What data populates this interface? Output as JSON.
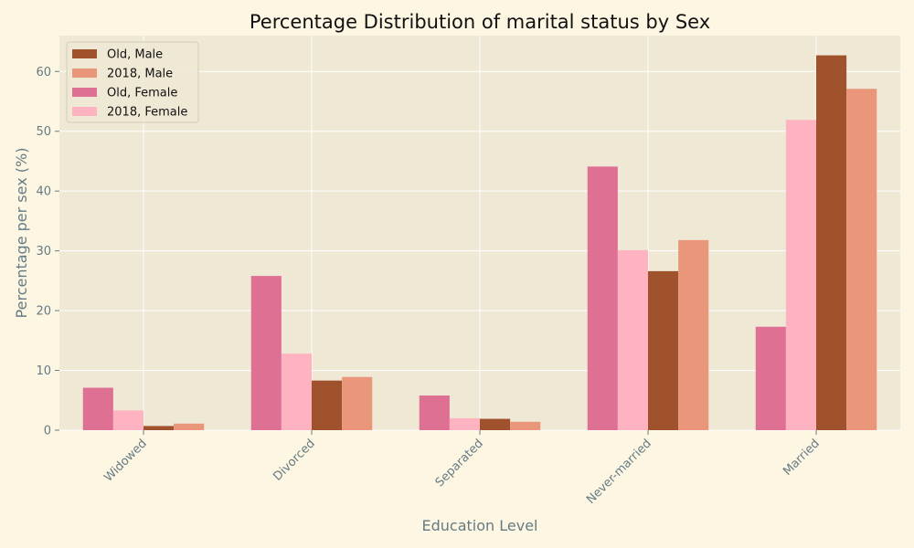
{
  "chart_data": {
    "type": "bar",
    "title": "Percentage Distribution of marital status by Sex",
    "xlabel": "Education Level",
    "ylabel": "Percentage per sex (%)",
    "ylim": [
      0,
      66
    ],
    "yticks": [
      0,
      10,
      20,
      30,
      40,
      50,
      60
    ],
    "grid": true,
    "legend_position": "top-left",
    "categories": [
      "Widowed",
      "Divorced",
      "Separated",
      "Never-married",
      "Married"
    ],
    "series": [
      {
        "name": "Old, Female",
        "color": "#de7094",
        "values": [
          7.1,
          25.8,
          5.8,
          44.1,
          17.3
        ]
      },
      {
        "name": "2018, Female",
        "color": "#ffb3c1",
        "values": [
          3.3,
          12.8,
          2.0,
          30.1,
          51.9
        ]
      },
      {
        "name": "Old, Male",
        "color": "#a0522d",
        "values": [
          0.7,
          8.3,
          1.9,
          26.6,
          62.7
        ]
      },
      {
        "name": "2018, Male",
        "color": "#e9967a",
        "values": [
          1.1,
          8.9,
          1.4,
          31.8,
          57.1
        ]
      }
    ],
    "legend_order": [
      2,
      3,
      0,
      1
    ],
    "colors": {
      "background": "#fdf6e3",
      "plot_background": "#eee8d5",
      "grid": "#ffffff",
      "axis_text": "#657b83"
    }
  }
}
